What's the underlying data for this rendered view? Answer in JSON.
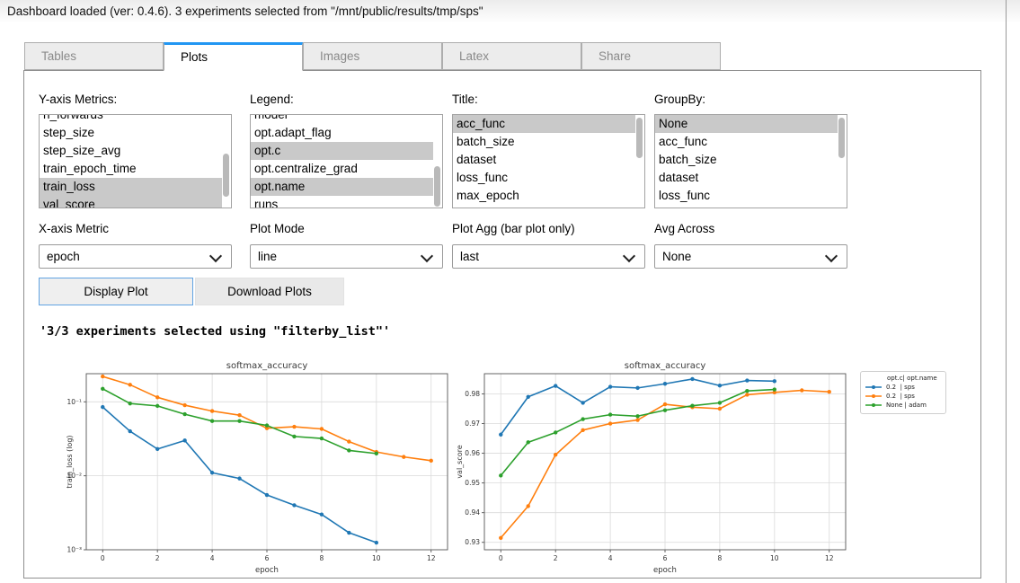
{
  "status_bar": {
    "text": "Dashboard loaded (ver: 0.4.6). 3 experiments selected from \"/mnt/public/results/tmp/sps\""
  },
  "tabs": [
    {
      "label": "Tables",
      "active": false
    },
    {
      "label": "Plots",
      "active": true
    },
    {
      "label": "Images",
      "active": false
    },
    {
      "label": "Latex",
      "active": false
    },
    {
      "label": "Share",
      "active": false
    }
  ],
  "selectors": [
    {
      "id": "y-axis-metrics",
      "label": "Y-axis Metrics:",
      "items": [
        {
          "t": "n_forwards",
          "sel": false
        },
        {
          "t": "step_size",
          "sel": false
        },
        {
          "t": "step_size_avg",
          "sel": false
        },
        {
          "t": "train_epoch_time",
          "sel": false
        },
        {
          "t": "train_loss",
          "sel": true
        },
        {
          "t": "val_score",
          "sel": true
        }
      ],
      "scroll_offset": -10,
      "thumb_top": 42,
      "thumb_height": 46
    },
    {
      "id": "legend",
      "label": "Legend:",
      "items": [
        {
          "t": "model",
          "sel": false
        },
        {
          "t": "opt.adapt_flag",
          "sel": false
        },
        {
          "t": "opt.c",
          "sel": true
        },
        {
          "t": "opt.centralize_grad",
          "sel": false
        },
        {
          "t": "opt.name",
          "sel": true
        },
        {
          "t": "runs",
          "sel": false
        }
      ],
      "scroll_offset": -10,
      "thumb_top": 55,
      "thumb_height": 44
    },
    {
      "id": "title",
      "label": "Title:",
      "items": [
        {
          "t": "acc_func",
          "sel": true
        },
        {
          "t": "batch_size",
          "sel": false
        },
        {
          "t": "dataset",
          "sel": false
        },
        {
          "t": "loss_func",
          "sel": false
        },
        {
          "t": "max_epoch",
          "sel": false
        }
      ],
      "scroll_offset": 0,
      "thumb_top": 3,
      "thumb_height": 44
    },
    {
      "id": "groupby",
      "label": "GroupBy:",
      "items": [
        {
          "t": "None",
          "sel": true
        },
        {
          "t": "acc_func",
          "sel": false
        },
        {
          "t": "batch_size",
          "sel": false
        },
        {
          "t": "dataset",
          "sel": false
        },
        {
          "t": "loss_func",
          "sel": false
        }
      ],
      "scroll_offset": 0,
      "thumb_top": 3,
      "thumb_height": 44
    }
  ],
  "dropdowns": [
    {
      "id": "x-axis-metric",
      "label": "X-axis Metric",
      "value": "epoch"
    },
    {
      "id": "plot-mode",
      "label": "Plot Mode",
      "value": "line"
    },
    {
      "id": "plot-agg",
      "label": "Plot Agg (bar plot only)",
      "value": "last"
    },
    {
      "id": "avg-across",
      "label": "Avg Across",
      "value": "None"
    }
  ],
  "buttons": {
    "display": "Display Plot",
    "download": "Download Plots"
  },
  "message": "'3/3 experiments selected using \"filterby_list\"'",
  "chart_data": [
    {
      "type": "line",
      "title": "softmax_accuracy",
      "xlabel": "epoch",
      "ylabel": "train_loss (log)",
      "yscale": "log",
      "xlim": [
        -0.6,
        12.6
      ],
      "ylim": [
        0.001,
        0.24
      ],
      "xticks": [
        0,
        2,
        4,
        6,
        8,
        10,
        12
      ],
      "ytick_values": [
        0.1,
        0.01,
        0.001
      ],
      "ytick_labels": [
        "10⁻¹",
        "10⁻²",
        "10⁻³"
      ],
      "grid": true,
      "legend_position": "none",
      "series": [
        {
          "name": "0.2  | sps",
          "color": "#1f77b4",
          "x": [
            0,
            1,
            2,
            3,
            4,
            5,
            6,
            7,
            8,
            9,
            10
          ],
          "y": [
            0.085,
            0.04,
            0.023,
            0.03,
            0.011,
            0.0092,
            0.0055,
            0.004,
            0.003,
            0.0017,
            0.00125
          ]
        },
        {
          "name": "0.2  | sps",
          "color": "#ff7f0e",
          "x": [
            0,
            1,
            2,
            3,
            4,
            5,
            6,
            7,
            8,
            9,
            10,
            11,
            12
          ],
          "y": [
            0.22,
            0.17,
            0.115,
            0.09,
            0.075,
            0.066,
            0.044,
            0.046,
            0.043,
            0.029,
            0.021,
            0.018,
            0.016
          ]
        },
        {
          "name": "None | adam",
          "color": "#2ca02c",
          "x": [
            0,
            1,
            2,
            3,
            4,
            5,
            6,
            7,
            8,
            9,
            10
          ],
          "y": [
            0.15,
            0.095,
            0.088,
            0.068,
            0.055,
            0.055,
            0.048,
            0.034,
            0.032,
            0.022,
            0.02
          ]
        }
      ]
    },
    {
      "type": "line",
      "title": "softmax_accuracy",
      "xlabel": "epoch",
      "ylabel": "val_score",
      "yscale": "linear",
      "xlim": [
        -0.6,
        12.6
      ],
      "ylim": [
        0.9275,
        0.9868
      ],
      "xticks": [
        0,
        2,
        4,
        6,
        8,
        10,
        12
      ],
      "ytick_values": [
        0.93,
        0.94,
        0.95,
        0.96,
        0.97,
        0.98
      ],
      "ytick_labels": [
        "0.93",
        "0.94",
        "0.95",
        "0.96",
        "0.97",
        "0.98"
      ],
      "grid": true,
      "legend_position": "right-outside",
      "series": [
        {
          "name": "0.2  | sps",
          "color": "#1f77b4",
          "x": [
            0,
            1,
            2,
            3,
            4,
            5,
            6,
            7,
            8,
            9,
            10
          ],
          "y": [
            0.9663,
            0.979,
            0.9827,
            0.977,
            0.9824,
            0.982,
            0.9834,
            0.985,
            0.9828,
            0.9845,
            0.9843
          ]
        },
        {
          "name": "0.2  | sps",
          "color": "#ff7f0e",
          "x": [
            0,
            1,
            2,
            3,
            4,
            5,
            6,
            7,
            8,
            9,
            10,
            11,
            12
          ],
          "y": [
            0.9315,
            0.9422,
            0.9595,
            0.9678,
            0.97,
            0.9712,
            0.9765,
            0.9755,
            0.975,
            0.9797,
            0.9805,
            0.9812,
            0.9807
          ]
        },
        {
          "name": "None | adam",
          "color": "#2ca02c",
          "x": [
            0,
            1,
            2,
            3,
            4,
            5,
            6,
            7,
            8,
            9,
            10
          ],
          "y": [
            0.9525,
            0.9637,
            0.967,
            0.9715,
            0.973,
            0.9725,
            0.9745,
            0.976,
            0.977,
            0.981,
            0.9815
          ]
        }
      ]
    }
  ],
  "plot_legend": {
    "header": "opt.c| opt.name",
    "entries": [
      {
        "color": "#1f77b4",
        "label": "0.2  | sps"
      },
      {
        "color": "#ff7f0e",
        "label": "0.2  | sps"
      },
      {
        "color": "#2ca02c",
        "label": "None | adam"
      }
    ]
  },
  "colors": {
    "tab_accent": "#2196f3",
    "selected_item_bg": "#c9c9c9",
    "display_button_border": "#61a3e3",
    "series_blue": "#1f77b4",
    "series_orange": "#ff7f0e",
    "series_green": "#2ca02c"
  }
}
